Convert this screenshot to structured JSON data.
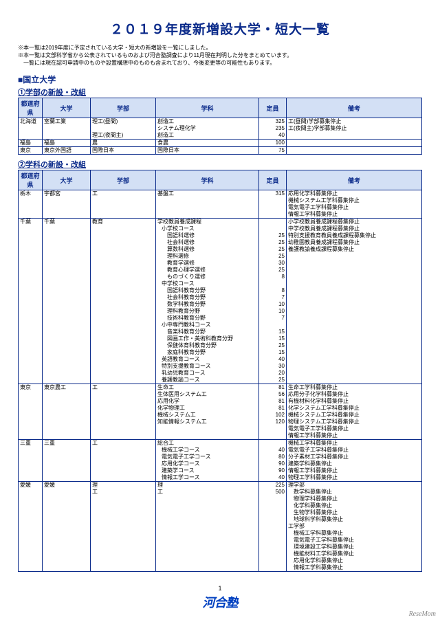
{
  "title": "２０１９年度新増設大学・短大一覧",
  "notes": [
    "※本一覧は2019年度に予定されている大学・短大の新増設を一覧にしました。",
    "※本一覧は文部科学省から公表されているものおよび河合塾調査により11月現在判明した分をまとめています。",
    "　一覧には現在認可申請中のものや設置構想中のものも含まれており、今後変更等の可能性もあります。"
  ],
  "section_heading": "■国立大学",
  "table1": {
    "heading": "①学部の新設・改組",
    "headers": [
      "都道府県",
      "大学",
      "学部",
      "学科",
      "定員",
      "備考"
    ],
    "rows": [
      {
        "g": 1,
        "pref": "北海道",
        "univ": "室蘭工業",
        "fac": "理工(昼間)",
        "dept": "創造工",
        "cap": "325",
        "note": "工(昼間)学部募集停止"
      },
      {
        "g": 0,
        "pref": "",
        "univ": "",
        "fac": "",
        "dept": "システム理化学",
        "cap": "235",
        "note": "工(夜間主)学部募集停止"
      },
      {
        "g": 0,
        "pref": "",
        "univ": "",
        "fac": "理工(夜間主)",
        "dept": "創造工",
        "cap": "40",
        "note": ""
      },
      {
        "g": 1,
        "pref": "福島",
        "univ": "福島",
        "fac": "農",
        "dept": "食農",
        "cap": "100",
        "note": ""
      },
      {
        "g": 1,
        "pref": "東京",
        "univ": "東京外国語",
        "fac": "国際日本",
        "dept": "国際日本",
        "cap": "75",
        "note": ""
      }
    ]
  },
  "table2": {
    "heading": "②学科の新設・改組",
    "headers": [
      "都道府県",
      "大学",
      "学部",
      "学科",
      "定員",
      "備考"
    ],
    "rows": [
      {
        "g": 1,
        "pref": "栃木",
        "univ": "宇都宮",
        "fac": "工",
        "dept": "基盤工",
        "cap": "315",
        "note": "応用化学科募集停止"
      },
      {
        "g": 0,
        "note": "機械システム工学科募集停止"
      },
      {
        "g": 0,
        "note": "電気電子工学科募集停止"
      },
      {
        "g": 0,
        "note": "情報工学科募集停止"
      },
      {
        "g": 1,
        "pref": "千葉",
        "univ": "千葉",
        "fac": "教育",
        "dept": "学校教員養成課程",
        "cap": "",
        "note": "小学校教員養成課程募集停止"
      },
      {
        "g": 0,
        "dept": "小学校コース",
        "ind": 1,
        "note": "中学校教員養成課程募集停止"
      },
      {
        "g": 0,
        "dept": "国語科選修",
        "ind": 2,
        "cap": "25",
        "note": "特別支援教育教員養成課程募集停止"
      },
      {
        "g": 0,
        "dept": "社会科選修",
        "ind": 2,
        "cap": "25",
        "note": "幼稚園教員養成課程募集停止"
      },
      {
        "g": 0,
        "dept": "算数科選修",
        "ind": 2,
        "cap": "25",
        "note": "養護教諭養成課程募集停止"
      },
      {
        "g": 0,
        "dept": "理科選修",
        "ind": 2,
        "cap": "25"
      },
      {
        "g": 0,
        "dept": "教育学選修",
        "ind": 2,
        "cap": "30"
      },
      {
        "g": 0,
        "dept": "教育心理学選修",
        "ind": 2,
        "cap": "25"
      },
      {
        "g": 0,
        "dept": "ものづくり選修",
        "ind": 2,
        "cap": "8"
      },
      {
        "g": 0,
        "dept": "中学校コース",
        "ind": 1
      },
      {
        "g": 0,
        "dept": "国語科教育分野",
        "ind": 2,
        "cap": "8"
      },
      {
        "g": 0,
        "dept": "社会科教育分野",
        "ind": 2,
        "cap": "7"
      },
      {
        "g": 0,
        "dept": "数学科教育分野",
        "ind": 2,
        "cap": "10"
      },
      {
        "g": 0,
        "dept": "理科教育分野",
        "ind": 2,
        "cap": "10"
      },
      {
        "g": 0,
        "dept": "技術科教育分野",
        "ind": 2,
        "cap": "7"
      },
      {
        "g": 0,
        "dept": "小中専門教科コース",
        "ind": 1
      },
      {
        "g": 0,
        "dept": "音楽科教育分野",
        "ind": 2,
        "cap": "15"
      },
      {
        "g": 0,
        "dept": "図画工作・美術科教育分野",
        "ind": 2,
        "cap": "15"
      },
      {
        "g": 0,
        "dept": "保健体育科教育分野",
        "ind": 2,
        "cap": "25"
      },
      {
        "g": 0,
        "dept": "家庭科教育分野",
        "ind": 2,
        "cap": "15"
      },
      {
        "g": 0,
        "dept": "英語教育コース",
        "ind": 1,
        "cap": "40"
      },
      {
        "g": 0,
        "dept": "特別支援教育コース",
        "ind": 1,
        "cap": "30"
      },
      {
        "g": 0,
        "dept": "乳幼児教育コース",
        "ind": 1,
        "cap": "20"
      },
      {
        "g": 0,
        "dept": "養護教諭コース",
        "ind": 1,
        "cap": "25"
      },
      {
        "g": 1,
        "pref": "東京",
        "univ": "東京農工",
        "fac": "工",
        "dept": "生命工",
        "cap": "81",
        "note": "生命工学科募集停止"
      },
      {
        "g": 0,
        "dept": "生体医用システム工",
        "cap": "56",
        "note": "応用分子化学科募集停止"
      },
      {
        "g": 0,
        "dept": "応用化学",
        "cap": "81",
        "note": "有機材料化学科募集停止"
      },
      {
        "g": 0,
        "dept": "化学物理工",
        "cap": "81",
        "note": "化学システム工学科募集停止"
      },
      {
        "g": 0,
        "dept": "機械システム工",
        "cap": "102",
        "note": "機械システム工学科募集停止"
      },
      {
        "g": 0,
        "dept": "知能情報システム工",
        "cap": "120",
        "note": "物理システム工学科募集停止"
      },
      {
        "g": 0,
        "note": "電気電子工学科募集停止"
      },
      {
        "g": 0,
        "note": "情報工学科募集停止"
      },
      {
        "g": 1,
        "pref": "三重",
        "univ": "三重",
        "fac": "工",
        "dept": "総合工",
        "cap": "",
        "note": "機械工学科募集停止"
      },
      {
        "g": 0,
        "dept": "機械工学コース",
        "ind": 1,
        "cap": "40",
        "note": "電気電子工学科募集停止"
      },
      {
        "g": 0,
        "dept": "電気電子工学コース",
        "ind": 1,
        "cap": "80",
        "note": "分子素材工学科募集停止"
      },
      {
        "g": 0,
        "dept": "応用化学コース",
        "ind": 1,
        "cap": "90",
        "note": "建築学科募集停止"
      },
      {
        "g": 0,
        "dept": "建築学コース",
        "ind": 1,
        "cap": "90",
        "note": "情報工学科募集停止"
      },
      {
        "g": 0,
        "dept": "情報工学コース",
        "ind": 1,
        "cap": "40",
        "note": "物理工学科募集停止"
      },
      {
        "g": 1,
        "pref": "愛媛",
        "univ": "愛媛",
        "fac": "理",
        "dept": "理",
        "cap": "225",
        "note": "理学部"
      },
      {
        "g": 0,
        "fac": "工",
        "dept": "工",
        "cap": "500",
        "note": "　数学科募集停止"
      },
      {
        "g": 0,
        "note": "　物理学科募集停止"
      },
      {
        "g": 0,
        "note": "　化学科募集停止"
      },
      {
        "g": 0,
        "note": "　生物学科募集停止"
      },
      {
        "g": 0,
        "note": "　地球科学科募集停止"
      },
      {
        "g": 0,
        "note": "工学部"
      },
      {
        "g": 0,
        "note": "　機械工学科募集停止"
      },
      {
        "g": 0,
        "note": "　電気電子工学科募集停止"
      },
      {
        "g": 0,
        "note": "　環境建設工学科募集停止"
      },
      {
        "g": 0,
        "note": "　機能材料工学科募集停止"
      },
      {
        "g": 0,
        "note": "　応用化学科募集停止"
      },
      {
        "g": 0,
        "note": "　情報工学科募集停止"
      }
    ]
  },
  "page_number": "1",
  "brand": "河合塾",
  "corner": "ReseMom"
}
